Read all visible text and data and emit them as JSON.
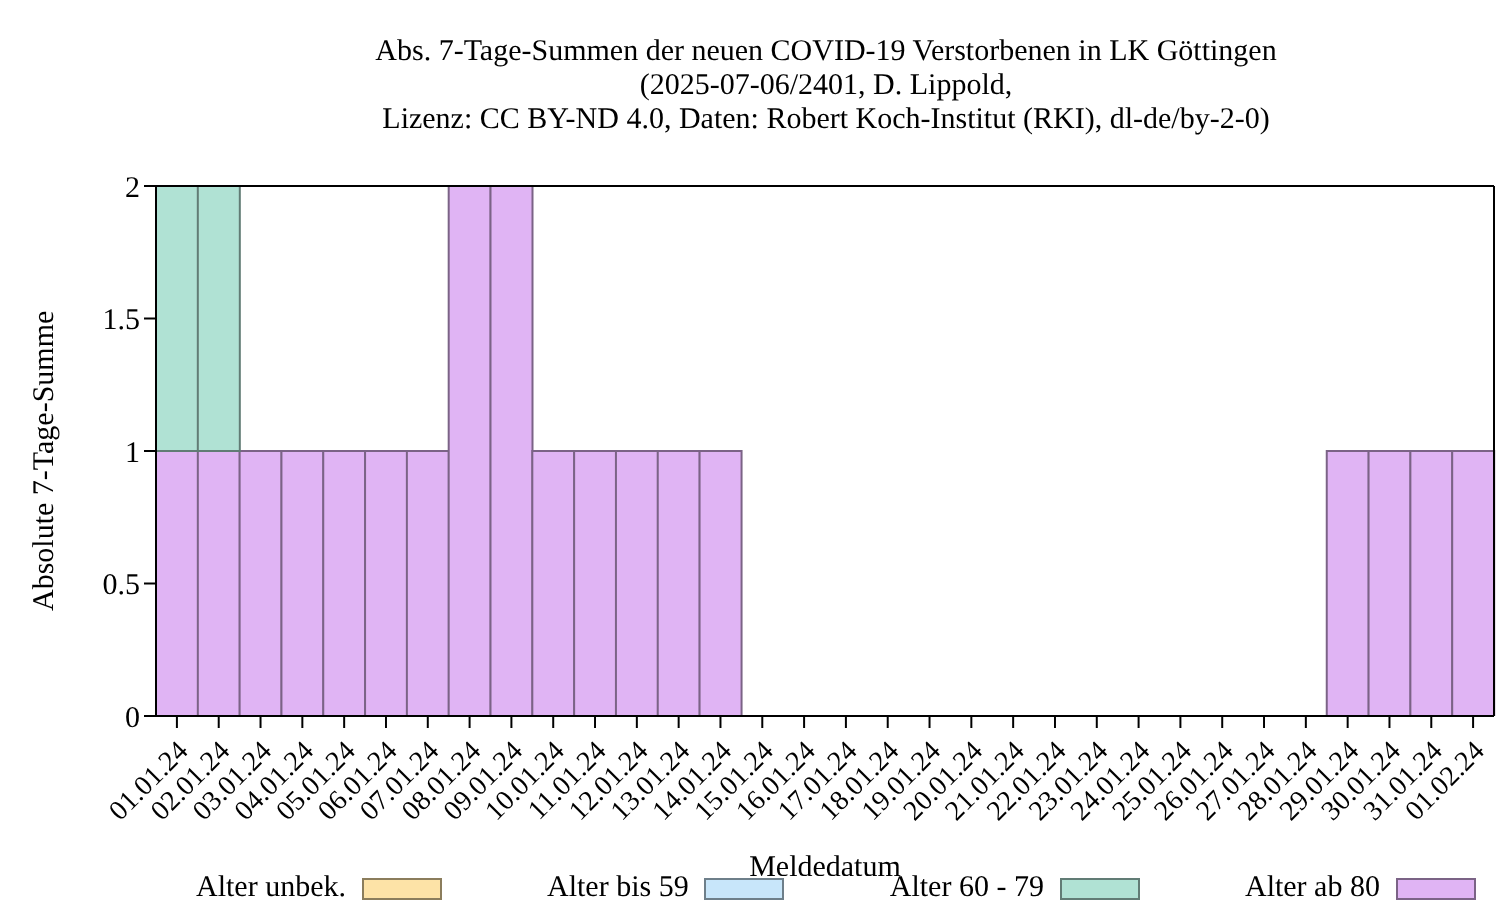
{
  "chart_data": {
    "type": "bar",
    "title": "Abs. 7-Tage-Summen der neuen COVID-19 Verstorbenen in LK Göttingen",
    "subtitle": "(2025-07-06/2401, D. Lippold,\nLizenz: CC BY-ND 4.0, Daten: Robert Koch-Institut (RKI), dl-de/by-2-0)",
    "xlabel": "Meldedatum",
    "ylabel": "Absolute 7-Tage-Summe",
    "categories": [
      "01.01.24",
      "02.01.24",
      "03.01.24",
      "04.01.24",
      "05.01.24",
      "06.01.24",
      "07.01.24",
      "08.01.24",
      "09.01.24",
      "10.01.24",
      "11.01.24",
      "12.01.24",
      "13.01.24",
      "14.01.24",
      "15.01.24",
      "16.01.24",
      "17.01.24",
      "18.01.24",
      "19.01.24",
      "20.01.24",
      "21.01.24",
      "22.01.24",
      "23.01.24",
      "24.01.24",
      "25.01.24",
      "26.01.24",
      "27.01.24",
      "28.01.24",
      "29.01.24",
      "30.01.24",
      "31.01.24",
      "01.02.24"
    ],
    "stacked": true,
    "series": [
      {
        "name": "Alter ab 80",
        "color": "#e0b4f4",
        "values": [
          1,
          1,
          1,
          1,
          1,
          1,
          1,
          2,
          2,
          1,
          1,
          1,
          1,
          1,
          0,
          0,
          0,
          0,
          0,
          0,
          0,
          0,
          0,
          0,
          0,
          0,
          0,
          0,
          1,
          1,
          1,
          1
        ]
      },
      {
        "name": "Alter 60 - 79",
        "color": "#b0e2d4",
        "values": [
          1,
          1,
          0,
          0,
          0,
          0,
          0,
          0,
          0,
          0,
          0,
          0,
          0,
          0,
          0,
          0,
          0,
          0,
          0,
          0,
          0,
          0,
          0,
          0,
          0,
          0,
          0,
          0,
          0,
          0,
          0,
          0
        ]
      },
      {
        "name": "Alter bis 59",
        "color": "#c8e6fa",
        "values": [
          0,
          0,
          0,
          0,
          0,
          0,
          0,
          0,
          0,
          0,
          0,
          0,
          0,
          0,
          0,
          0,
          0,
          0,
          0,
          0,
          0,
          0,
          0,
          0,
          0,
          0,
          0,
          0,
          0,
          0,
          0,
          0
        ]
      },
      {
        "name": "Alter unbek.",
        "color": "#fde3a7",
        "values": [
          0,
          0,
          0,
          0,
          0,
          0,
          0,
          0,
          0,
          0,
          0,
          0,
          0,
          0,
          0,
          0,
          0,
          0,
          0,
          0,
          0,
          0,
          0,
          0,
          0,
          0,
          0,
          0,
          0,
          0,
          0,
          0
        ]
      }
    ],
    "ylim": [
      0,
      2
    ],
    "yticks": [
      0,
      0.5,
      1,
      1.5,
      2
    ],
    "grid": false,
    "legend": "bottom"
  }
}
